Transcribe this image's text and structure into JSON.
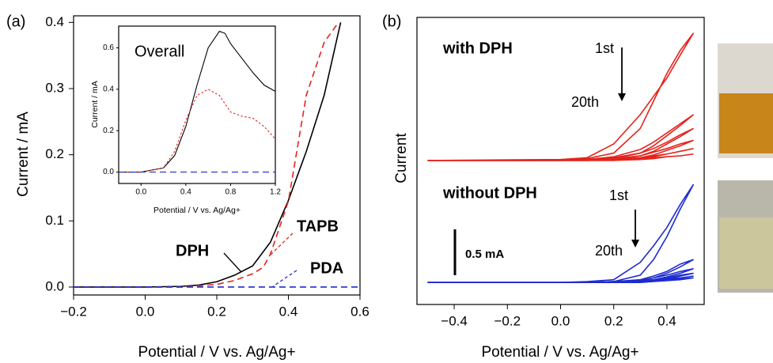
{
  "chart_data": [
    {
      "type": "line",
      "panel_label": "(a)",
      "xlabel": "Potential / V vs. Ag/Ag+",
      "ylabel": "Current / mA",
      "xlim": [
        -0.2,
        0.6
      ],
      "ylim": [
        -0.012,
        0.41
      ],
      "xticks": [
        {
          "value": -0.2,
          "label": "−0.2"
        },
        {
          "value": 0,
          "label": "0.0"
        },
        0.2,
        0.4,
        0.6
      ],
      "yticks": [
        {
          "value": 0,
          "label": "0.0"
        },
        0.1,
        0.2,
        0.3,
        0.4
      ],
      "series": [
        {
          "name": "DPH",
          "color": "#000000",
          "dash": "solid",
          "x": [
            -0.2,
            -0.1,
            0,
            0.1,
            0.15,
            0.2,
            0.25,
            0.3,
            0.35,
            0.4,
            0.45,
            0.5,
            0.546
          ],
          "values": [
            0,
            0,
            0,
            0.001,
            0.003,
            0.008,
            0.018,
            0.032,
            0.068,
            0.131,
            0.205,
            0.29,
            0.4
          ]
        },
        {
          "name": "TAPB",
          "color": "#e3241c",
          "dash": "dashed",
          "x": [
            -0.2,
            -0.1,
            0,
            0.1,
            0.2,
            0.25,
            0.3,
            0.33,
            0.35,
            0.4,
            0.45,
            0.5,
            0.54
          ],
          "values": [
            0,
            0,
            0,
            0,
            0.004,
            0.01,
            0.02,
            0.03,
            0.05,
            0.13,
            0.29,
            0.37,
            0.4
          ]
        },
        {
          "name": "PDA",
          "color": "#1f2bd0",
          "dash": "dashed",
          "x": [
            -0.2,
            0.6
          ],
          "values": [
            0,
            0
          ]
        }
      ]
    },
    {
      "type": "line",
      "title": "Overall",
      "xlabel": "Potential / V vs. Ag/Ag+",
      "ylabel": "Current / mA",
      "xlim": [
        -0.2,
        1.2
      ],
      "ylim": [
        -0.055,
        0.705
      ],
      "xticks": [
        {
          "value": 0,
          "label": "0.0"
        },
        0.4,
        0.8,
        1.2
      ],
      "yticks": [
        {
          "value": 0,
          "label": "0.0"
        },
        0.2,
        0.4,
        0.6
      ],
      "series": [
        {
          "color": "#000000",
          "dash": "solid",
          "x": [
            -0.2,
            0,
            0.2,
            0.3,
            0.4,
            0.5,
            0.6,
            0.7,
            0.75,
            0.8,
            0.9,
            1.0,
            1.1,
            1.2
          ],
          "values": [
            0,
            0,
            0.02,
            0.08,
            0.22,
            0.42,
            0.6,
            0.68,
            0.67,
            0.62,
            0.55,
            0.48,
            0.42,
            0.39
          ]
        },
        {
          "color": "#e3241c",
          "dash": "dotted",
          "x": [
            -0.2,
            0,
            0.2,
            0.3,
            0.4,
            0.5,
            0.6,
            0.7,
            0.75,
            0.8,
            0.9,
            1.0,
            1.1,
            1.2
          ],
          "values": [
            0,
            0,
            0.02,
            0.1,
            0.25,
            0.37,
            0.4,
            0.37,
            0.33,
            0.29,
            0.27,
            0.26,
            0.22,
            0.16
          ]
        },
        {
          "color": "#1f2bd0",
          "dash": "dashed",
          "x": [
            -0.2,
            1.2
          ],
          "values": [
            0,
            0
          ]
        }
      ]
    },
    {
      "type": "line",
      "panel_label": "(b)",
      "title": "with DPH",
      "title_color": "#e3241c",
      "xlabel": "Potential / V vs. Ag/Ag+",
      "ylabel": "Current",
      "xlim": [
        -0.54,
        0.54
      ],
      "ylim": [
        -0.165,
        1.56
      ],
      "xticks": [
        {
          "value": -0.4,
          "label": "−0.4"
        },
        {
          "value": -0.2,
          "label": "−0.2"
        },
        {
          "value": 0,
          "label": "0.0"
        },
        0.2,
        0.4
      ],
      "annotations": [
        "1st",
        "20th"
      ],
      "x": [
        -0.5,
        0,
        0.1,
        0.2,
        0.3,
        0.35,
        0.4,
        0.45,
        0.5,
        0.45,
        0.4,
        0.35,
        0.3,
        0.2,
        0.1,
        0,
        -0.5
      ],
      "series": [
        {
          "color": "#e3241c",
          "values": [
            0,
            0.01,
            0.03,
            0.18,
            0.5,
            0.7,
            0.9,
            1.15,
            1.39,
            1.2,
            0.95,
            0.65,
            0.35,
            0.08,
            0.02,
            0.01,
            0
          ]
        },
        {
          "color": "#e3241c",
          "values": [
            0,
            0,
            0.01,
            0.02,
            0.08,
            0.16,
            0.27,
            0.38,
            0.5,
            0.4,
            0.3,
            0.2,
            0.12,
            0.04,
            0.01,
            0,
            0
          ]
        },
        {
          "color": "#e3241c",
          "values": [
            0,
            0,
            0,
            0.01,
            0.05,
            0.1,
            0.18,
            0.26,
            0.35,
            0.28,
            0.2,
            0.13,
            0.08,
            0.03,
            0.01,
            0,
            0
          ]
        },
        {
          "color": "#e3241c",
          "values": [
            0,
            0,
            0,
            0.01,
            0.03,
            0.06,
            0.11,
            0.16,
            0.22,
            0.18,
            0.13,
            0.09,
            0.05,
            0.02,
            0,
            0,
            0
          ]
        },
        {
          "color": "#e3241c",
          "values": [
            0,
            0,
            0,
            0,
            0.02,
            0.04,
            0.07,
            0.1,
            0.13,
            0.1,
            0.07,
            0.05,
            0.03,
            0.01,
            0,
            0,
            0
          ]
        },
        {
          "color": "#e3241c",
          "values": [
            0,
            0,
            0,
            0,
            0.01,
            0.02,
            0.04,
            0.05,
            0.07,
            0.05,
            0.04,
            0.03,
            0.02,
            0.01,
            0,
            0,
            0
          ]
        }
      ]
    },
    {
      "type": "line",
      "title": "without DPH",
      "title_color": "#1f2bd0",
      "xlim": [
        -0.54,
        0.54
      ],
      "ylim": [
        -0.24,
        1.165
      ],
      "annotations": [
        "1st",
        "20th"
      ],
      "scale_bar": {
        "value": 0.5,
        "label": "0.5 mA"
      },
      "x": [
        -0.5,
        0,
        0.1,
        0.2,
        0.3,
        0.35,
        0.4,
        0.45,
        0.5,
        0.45,
        0.4,
        0.35,
        0.3,
        0.2,
        0.1,
        0,
        -0.5
      ],
      "series": [
        {
          "color": "#1f2bd0",
          "values": [
            0,
            0,
            0,
            0.01,
            0.08,
            0.25,
            0.5,
            0.8,
            1.07,
            0.85,
            0.6,
            0.4,
            0.22,
            0.03,
            0.01,
            0,
            0
          ]
        },
        {
          "color": "#1f2bd0",
          "values": [
            0,
            0,
            0,
            0,
            0.02,
            0.05,
            0.1,
            0.17,
            0.25,
            0.2,
            0.12,
            0.07,
            0.03,
            0.01,
            0,
            0,
            0
          ]
        },
        {
          "color": "#1f2bd0",
          "values": [
            0,
            0,
            0,
            0,
            0.01,
            0.03,
            0.06,
            0.1,
            0.15,
            0.12,
            0.08,
            0.05,
            0.02,
            0.01,
            0,
            0,
            0
          ]
        },
        {
          "color": "#1f2bd0",
          "values": [
            0,
            0,
            0,
            0,
            0.01,
            0.02,
            0.04,
            0.07,
            0.1,
            0.08,
            0.05,
            0.03,
            0.02,
            0,
            0,
            0,
            0
          ]
        },
        {
          "color": "#1f2bd0",
          "values": [
            0,
            0,
            0,
            0,
            0.01,
            0.02,
            0.03,
            0.05,
            0.07,
            0.05,
            0.04,
            0.02,
            0.01,
            0,
            0,
            0,
            0
          ]
        },
        {
          "color": "#1f2bd0",
          "values": [
            0,
            0,
            0,
            0,
            0,
            0.01,
            0.02,
            0.03,
            0.05,
            0.04,
            0.03,
            0.02,
            0.01,
            0,
            0,
            0,
            0
          ]
        }
      ]
    }
  ]
}
